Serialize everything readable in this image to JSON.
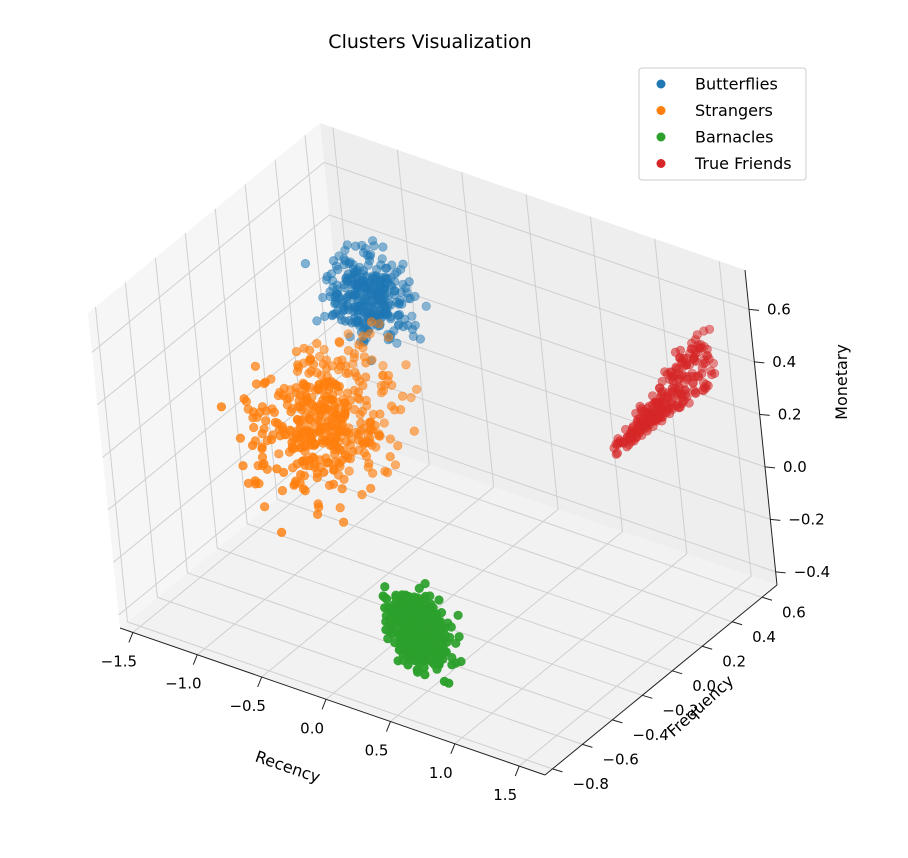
{
  "chart_data": {
    "type": "scatter",
    "projection": "3d",
    "title": "Clusters Visualization",
    "xlabel": "Recency",
    "ylabel": "Frequency",
    "zlabel": "Monetary",
    "xticks": [
      "−1.5",
      "−1.0",
      "−0.5",
      "0.0",
      "0.5",
      "1.0",
      "1.5"
    ],
    "yticks": [
      "−0.8",
      "−0.6",
      "−0.4",
      "−0.2",
      "0.0",
      "0.2",
      "0.4",
      "0.6"
    ],
    "zticks": [
      "−0.4",
      "−0.2",
      "0.0",
      "0.2",
      "0.4",
      "0.6"
    ],
    "xlim": [
      -1.6,
      1.7
    ],
    "ylim": [
      -0.85,
      0.7
    ],
    "zlim": [
      -0.45,
      0.75
    ],
    "grid": true,
    "legend_position": "top-right",
    "series": [
      {
        "name": "Butterflies",
        "color": "#1f77b4",
        "x_range": [
          -1.5,
          -0.6
        ],
        "y_range": [
          0.3,
          0.65
        ],
        "z_range": [
          0.05,
          0.5
        ],
        "count": 320
      },
      {
        "name": "Strangers",
        "color": "#ff7f0e",
        "x_range": [
          -1.5,
          -0.45
        ],
        "y_range": [
          -0.45,
          0.6
        ],
        "z_range": [
          -0.3,
          0.35
        ],
        "count": 420
      },
      {
        "name": "Barnacles",
        "color": "#2ca02c",
        "x_range": [
          0.25,
          0.95
        ],
        "y_range": [
          -0.8,
          -0.6
        ],
        "z_range": [
          -0.35,
          0.05
        ],
        "count": 380
      },
      {
        "name": "True Friends",
        "color": "#d62728",
        "x_range": [
          1.0,
          1.65
        ],
        "y_range": [
          0.2,
          0.65
        ],
        "z_range": [
          0.05,
          0.65
        ],
        "count": 260
      }
    ]
  }
}
